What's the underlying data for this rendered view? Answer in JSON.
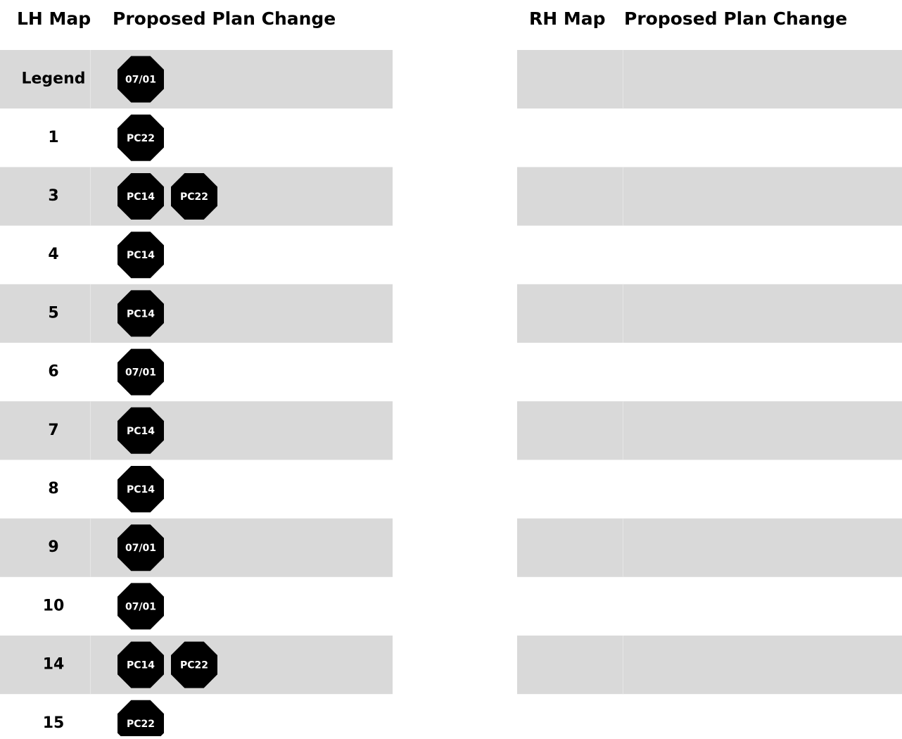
{
  "left": {
    "headers": [
      "LH Map",
      "Proposed Plan Change"
    ],
    "rows": [
      {
        "map": "Legend",
        "changes": [
          "07/01"
        ]
      },
      {
        "map": "1",
        "changes": [
          "PC22"
        ]
      },
      {
        "map": "3",
        "changes": [
          "PC14",
          "PC22"
        ]
      },
      {
        "map": "4",
        "changes": [
          "PC14"
        ]
      },
      {
        "map": "5",
        "changes": [
          "PC14"
        ]
      },
      {
        "map": "6",
        "changes": [
          "07/01"
        ]
      },
      {
        "map": "7",
        "changes": [
          "PC14"
        ]
      },
      {
        "map": "8",
        "changes": [
          "PC14"
        ]
      },
      {
        "map": "9",
        "changes": [
          "07/01"
        ]
      },
      {
        "map": "10",
        "changes": [
          "07/01"
        ]
      },
      {
        "map": "14",
        "changes": [
          "PC14",
          "PC22"
        ]
      },
      {
        "map": "15",
        "changes": [
          "PC22"
        ]
      }
    ]
  },
  "right": {
    "headers": [
      "RH Map",
      "Proposed Plan Change"
    ]
  }
}
